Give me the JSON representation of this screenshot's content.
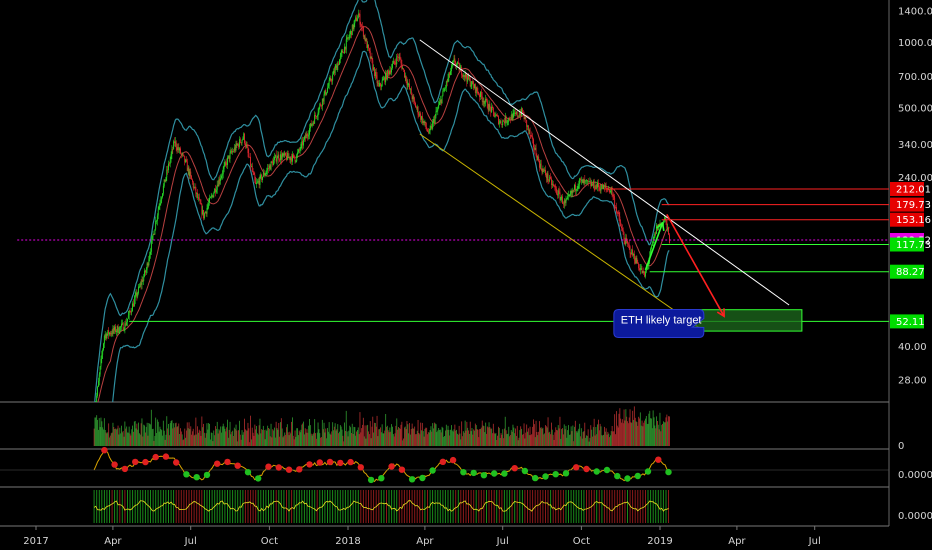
{
  "chart_data": {
    "type": "candlestick",
    "title": "",
    "y_scale": "log",
    "ylim": [
      17,
      1700
    ],
    "y_ticks": [
      {
        "value": 1400,
        "label": "1400.00"
      },
      {
        "value": 1000,
        "label": "1000.00"
      },
      {
        "value": 700,
        "label": "700.00"
      },
      {
        "value": 500,
        "label": "500.00"
      },
      {
        "value": 340,
        "label": "340.00"
      },
      {
        "value": 240,
        "label": "240.00"
      },
      {
        "value": 40,
        "label": "40.00"
      },
      {
        "value": 28,
        "label": "28.00"
      }
    ],
    "x_ticks": [
      {
        "date": "2017-01-01",
        "label": "2017"
      },
      {
        "date": "2017-04-01",
        "label": "Apr"
      },
      {
        "date": "2017-07-01",
        "label": "Jul"
      },
      {
        "date": "2017-10-01",
        "label": "Oct"
      },
      {
        "date": "2018-01-01",
        "label": "2018"
      },
      {
        "date": "2018-04-01",
        "label": "Apr"
      },
      {
        "date": "2018-07-01",
        "label": "Jul"
      },
      {
        "date": "2018-10-01",
        "label": "Oct"
      },
      {
        "date": "2019-01-01",
        "label": "2019"
      },
      {
        "date": "2019-04-01",
        "label": "Apr"
      },
      {
        "date": "2019-07-01",
        "label": "Jul"
      }
    ],
    "price_path": [
      {
        "date": "2017-03-10",
        "value": 19
      },
      {
        "date": "2017-03-22",
        "value": 45
      },
      {
        "date": "2017-04-15",
        "value": 50
      },
      {
        "date": "2017-05-10",
        "value": 90
      },
      {
        "date": "2017-05-25",
        "value": 180
      },
      {
        "date": "2017-06-12",
        "value": 350
      },
      {
        "date": "2017-06-25",
        "value": 280
      },
      {
        "date": "2017-07-16",
        "value": 160
      },
      {
        "date": "2017-08-15",
        "value": 300
      },
      {
        "date": "2017-09-01",
        "value": 370
      },
      {
        "date": "2017-09-15",
        "value": 220
      },
      {
        "date": "2017-10-10",
        "value": 300
      },
      {
        "date": "2017-11-01",
        "value": 295
      },
      {
        "date": "2017-11-25",
        "value": 470
      },
      {
        "date": "2017-12-20",
        "value": 800
      },
      {
        "date": "2018-01-13",
        "value": 1350
      },
      {
        "date": "2018-02-06",
        "value": 620
      },
      {
        "date": "2018-03-01",
        "value": 870
      },
      {
        "date": "2018-03-20",
        "value": 520
      },
      {
        "date": "2018-04-06",
        "value": 380
      },
      {
        "date": "2018-05-05",
        "value": 820
      },
      {
        "date": "2018-06-01",
        "value": 600
      },
      {
        "date": "2018-06-28",
        "value": 430
      },
      {
        "date": "2018-07-24",
        "value": 480
      },
      {
        "date": "2018-08-14",
        "value": 270
      },
      {
        "date": "2018-09-12",
        "value": 180
      },
      {
        "date": "2018-09-28",
        "value": 230
      },
      {
        "date": "2018-11-05",
        "value": 210
      },
      {
        "date": "2018-11-20",
        "value": 125
      },
      {
        "date": "2018-12-14",
        "value": 84
      },
      {
        "date": "2018-12-28",
        "value": 140
      },
      {
        "date": "2019-01-07",
        "value": 155
      },
      {
        "date": "2019-01-12",
        "value": 123.52
      }
    ],
    "price_levels": [
      {
        "value": 212.01,
        "label": "212.01",
        "color": "#e60000",
        "line": "#ff2222",
        "from": "2018-10-28"
      },
      {
        "date_note": "",
        "value": 179.73,
        "label": "179.73",
        "color": "#e60000",
        "line": "#ff2222",
        "from": "2019-01-03"
      },
      {
        "value": 153.16,
        "label": "153.16",
        "color": "#e60000",
        "line": "#ff2222",
        "from": "2019-01-03"
      },
      {
        "value": 123.52,
        "label": "123.52",
        "color": "#e600e6",
        "line": "#e600e6",
        "from": "2016-12-10",
        "dashed": true
      },
      {
        "value": 117.73,
        "label": "117.73",
        "color": "#00dd00",
        "line": "#33ff33",
        "from": "2019-01-03"
      },
      {
        "value": 88.27,
        "label": "88.27",
        "color": "#00dd00",
        "line": "#33ff33",
        "from": "2018-12-20"
      },
      {
        "value": 52.11,
        "label": "52.11",
        "color": "#00dd00",
        "line": "#33ff33",
        "from": "2017-04-20"
      }
    ],
    "trendlines": [
      {
        "color": "#ffffff",
        "from": {
          "date": "2018-03-26",
          "value": 1030
        },
        "to": {
          "date": "2019-06-01",
          "value": 62
        }
      },
      {
        "color": "#c8b400",
        "from": {
          "date": "2018-03-26",
          "value": 380
        },
        "to": {
          "date": "2019-02-15",
          "value": 49
        }
      }
    ],
    "arrows": [
      {
        "color": "#ff2020",
        "from": {
          "date": "2019-01-09",
          "value": 162
        },
        "to": {
          "date": "2019-03-17",
          "value": 55
        }
      },
      {
        "color": "#33ff33",
        "from": {
          "date": "2018-12-15",
          "value": 90
        },
        "to": {
          "date": "2019-01-04",
          "value": 148
        }
      }
    ],
    "target_box": {
      "from": "2019-02-09",
      "to": "2019-06-16",
      "top": 59,
      "bottom": 47,
      "fill": "#1e6b1e",
      "stroke": "#33ff33"
    },
    "annotation": {
      "text": "ETH likely target",
      "date": "2018-11-08",
      "value": 51,
      "fill": "#0c1a9c"
    },
    "sub_panels": [
      {
        "name": "volume",
        "label": "0"
      },
      {
        "name": "oscillator",
        "label": "0.0000"
      },
      {
        "name": "signal",
        "label": "0.0000"
      }
    ]
  }
}
